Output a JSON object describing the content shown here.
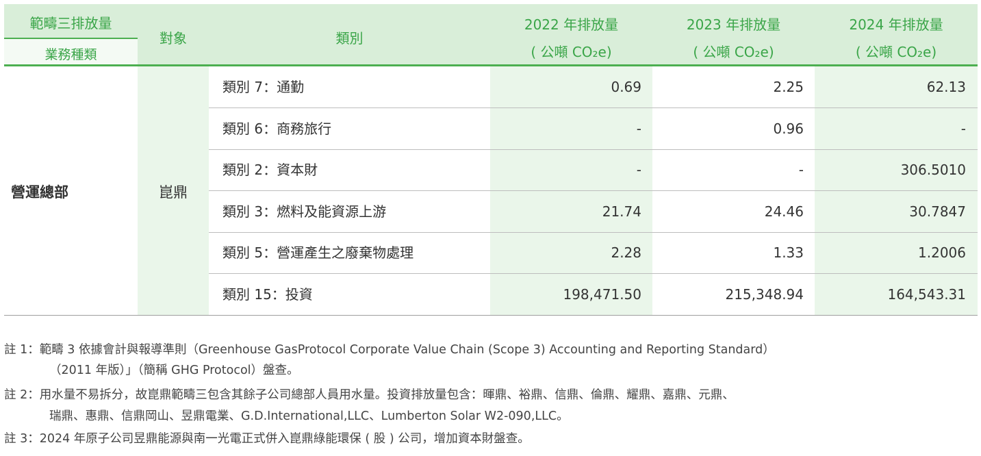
{
  "header": {
    "scope": "範疇三排放量",
    "business": "業務種類",
    "target": "對象",
    "category": "類別",
    "years": [
      {
        "year": "2022 年排放量",
        "unit": "( 公噸 CO₂e)"
      },
      {
        "year": "2023 年排放量",
        "unit": "( 公噸 CO₂e)"
      },
      {
        "year": "2024 年排放量",
        "unit": "( 公噸 CO₂e)"
      }
    ]
  },
  "body": {
    "business": "營運總部",
    "target": "崑鼎",
    "rows": [
      {
        "category": "類別 7：通勤",
        "v2022": "0.69",
        "v2023": "2.25",
        "v2024": "62.13"
      },
      {
        "category": "類別 6：商務旅行",
        "v2022": "-",
        "v2023": "0.96",
        "v2024": "-"
      },
      {
        "category": "類別 2：資本財",
        "v2022": "-",
        "v2023": "-",
        "v2024": "306.5010"
      },
      {
        "category": "類別 3：燃料及能資源上游",
        "v2022": "21.74",
        "v2023": "24.46",
        "v2024": "30.7847"
      },
      {
        "category": "類別 5：營運產生之廢棄物處理",
        "v2022": "2.28",
        "v2023": "1.33",
        "v2024": "1.2006"
      },
      {
        "category": "類別 15：投資",
        "v2022": "198,471.50",
        "v2023": "215,348.94",
        "v2024": "164,543.31"
      }
    ]
  },
  "notes": [
    {
      "label": "註 1：",
      "lines": [
        "範疇 3 依據會計與報導準則（Greenhouse GasProtocol Corporate Value Chain (Scope 3) Accounting and Reporting Standard）",
        "（2011 年版）」（簡稱 GHG Protocol）盤查。"
      ]
    },
    {
      "label": "註 2：",
      "lines": [
        "用水量不易拆分，故崑鼎範疇三包含其餘子公司總部人員用水量。投資排放量包含：暉鼎、裕鼎、信鼎、倫鼎、耀鼎、嘉鼎、元鼎、",
        "瑞鼎、惠鼎、信鼎岡山、昱鼎電業、G.D.International,LLC、Lumberton Solar W2-090,LLC。"
      ]
    },
    {
      "label": "註 3：",
      "lines": [
        "2024 年原子公司昱鼎能源與南一光電正式併入崑鼎綠能環保 ( 股 ) 公司，增加資本財盤查。"
      ]
    }
  ]
}
